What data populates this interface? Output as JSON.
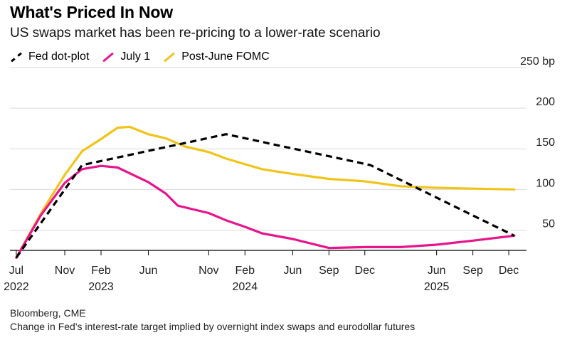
{
  "header": {
    "title": "What's Priced In Now",
    "subtitle": "US swaps market has been re-pricing to a lower-rate scenario"
  },
  "footer": {
    "source": "Bloomberg, CME",
    "note": "Change in Fed's interest-rate target implied by overnight index swaps and eurodollar futures"
  },
  "colors": {
    "fed_dot_plot": "#000000",
    "july_1": "#e6158c",
    "post_june_fomc": "#f0c419",
    "grid": "#d9d9d9",
    "axis": "#000000"
  },
  "chart_data": {
    "type": "line",
    "title": "What's Priced In Now",
    "subtitle": "US swaps market has been re-pricing to a lower-rate scenario",
    "xlabel": "",
    "ylabel": "",
    "y_unit": "bp",
    "ylim": [
      25,
      250
    ],
    "xlim": [
      "2022-06-15",
      "2026-01-15"
    ],
    "y_ticks": [
      {
        "value": 250,
        "label": "250 bp"
      },
      {
        "value": 200,
        "label": "200"
      },
      {
        "value": 150,
        "label": "150"
      },
      {
        "value": 100,
        "label": "100"
      },
      {
        "value": 50,
        "label": "50"
      }
    ],
    "x_ticks": [
      {
        "date": "2022-07-01",
        "label": "Jul",
        "year": "2022"
      },
      {
        "date": "2022-11-01",
        "label": "Nov",
        "year": ""
      },
      {
        "date": "2023-02-01",
        "label": "Feb",
        "year": "2023"
      },
      {
        "date": "2023-06-01",
        "label": "Jun",
        "year": ""
      },
      {
        "date": "2023-11-01",
        "label": "Nov",
        "year": ""
      },
      {
        "date": "2024-02-01",
        "label": "Feb",
        "year": "2024"
      },
      {
        "date": "2024-06-01",
        "label": "Jun",
        "year": ""
      },
      {
        "date": "2024-09-01",
        "label": "Sep",
        "year": ""
      },
      {
        "date": "2024-12-01",
        "label": "Dec",
        "year": ""
      },
      {
        "date": "2025-06-01",
        "label": "Jun",
        "year": "2025"
      },
      {
        "date": "2025-09-01",
        "label": "Sep",
        "year": ""
      },
      {
        "date": "2025-12-01",
        "label": "Dec",
        "year": ""
      }
    ],
    "grid": true,
    "legend_position": "top-left",
    "series": [
      {
        "name": "Fed dot-plot",
        "key": "fed_dot_plot",
        "style": "dashed",
        "points": [
          {
            "x": "2022-07-01",
            "y": 16
          },
          {
            "x": "2022-12-15",
            "y": 130
          },
          {
            "x": "2023-12-15",
            "y": 168
          },
          {
            "x": "2024-12-15",
            "y": 130
          },
          {
            "x": "2025-12-15",
            "y": 43
          }
        ]
      },
      {
        "name": "July 1",
        "key": "july_1",
        "style": "solid",
        "points": [
          {
            "x": "2022-07-01",
            "y": 16
          },
          {
            "x": "2022-09-01",
            "y": 68
          },
          {
            "x": "2022-11-01",
            "y": 108
          },
          {
            "x": "2022-12-15",
            "y": 125
          },
          {
            "x": "2023-02-01",
            "y": 129
          },
          {
            "x": "2023-03-15",
            "y": 127
          },
          {
            "x": "2023-06-01",
            "y": 109
          },
          {
            "x": "2023-07-15",
            "y": 95
          },
          {
            "x": "2023-08-15",
            "y": 80
          },
          {
            "x": "2023-11-01",
            "y": 71
          },
          {
            "x": "2023-12-15",
            "y": 62
          },
          {
            "x": "2024-02-01",
            "y": 54
          },
          {
            "x": "2024-03-15",
            "y": 46
          },
          {
            "x": "2024-06-01",
            "y": 39
          },
          {
            "x": "2024-09-01",
            "y": 28
          },
          {
            "x": "2024-12-01",
            "y": 29
          },
          {
            "x": "2025-03-01",
            "y": 29
          },
          {
            "x": "2025-06-01",
            "y": 32
          },
          {
            "x": "2025-09-01",
            "y": 37
          },
          {
            "x": "2025-12-15",
            "y": 43
          }
        ]
      },
      {
        "name": "Post-June FOMC",
        "key": "post_june_fomc",
        "style": "solid",
        "points": [
          {
            "x": "2022-07-01",
            "y": 16
          },
          {
            "x": "2022-09-01",
            "y": 70
          },
          {
            "x": "2022-11-01",
            "y": 118
          },
          {
            "x": "2022-12-15",
            "y": 147
          },
          {
            "x": "2023-02-01",
            "y": 162
          },
          {
            "x": "2023-03-15",
            "y": 176
          },
          {
            "x": "2023-04-15",
            "y": 177
          },
          {
            "x": "2023-06-01",
            "y": 168
          },
          {
            "x": "2023-07-15",
            "y": 163
          },
          {
            "x": "2023-09-01",
            "y": 153
          },
          {
            "x": "2023-11-01",
            "y": 146
          },
          {
            "x": "2023-12-15",
            "y": 138
          },
          {
            "x": "2024-02-01",
            "y": 131
          },
          {
            "x": "2024-03-15",
            "y": 125
          },
          {
            "x": "2024-06-01",
            "y": 119
          },
          {
            "x": "2024-09-01",
            "y": 113
          },
          {
            "x": "2024-12-01",
            "y": 110
          },
          {
            "x": "2025-03-01",
            "y": 104
          },
          {
            "x": "2025-06-01",
            "y": 102
          },
          {
            "x": "2025-09-01",
            "y": 101
          },
          {
            "x": "2025-12-15",
            "y": 100
          }
        ]
      }
    ]
  }
}
